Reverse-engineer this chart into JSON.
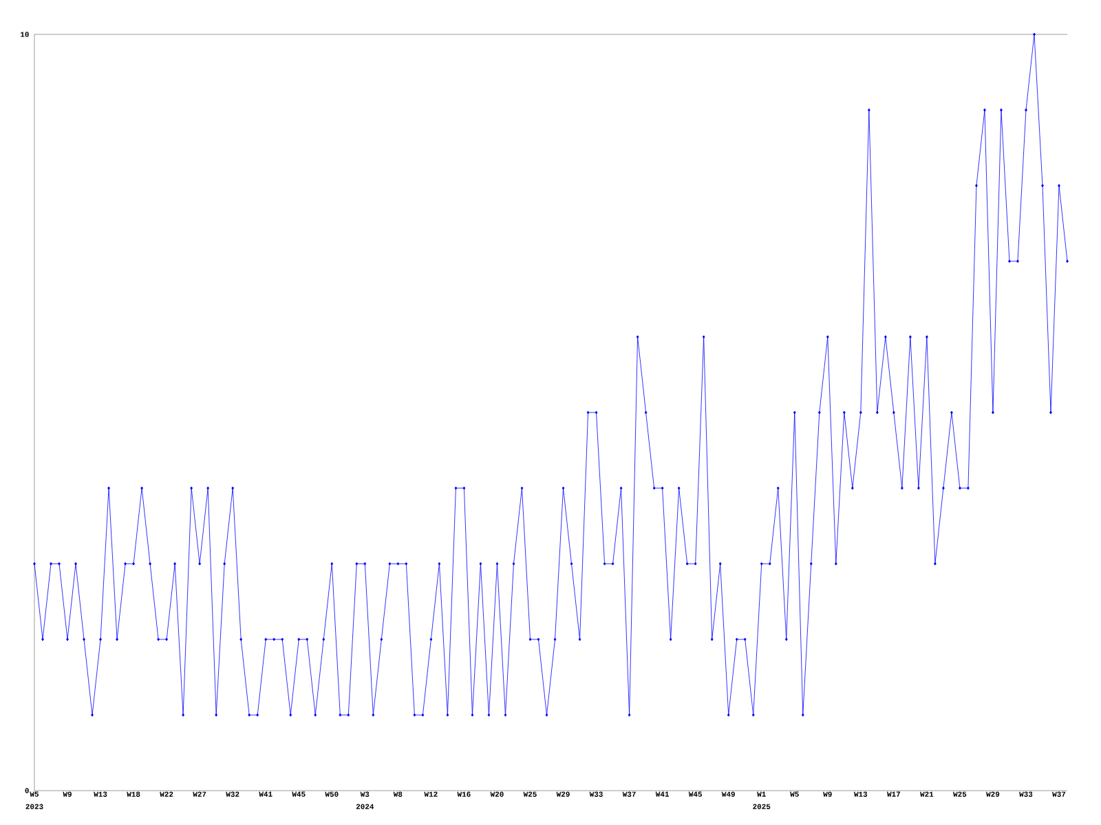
{
  "chart_data": {
    "type": "line",
    "categories": [
      "W5",
      null,
      null,
      null,
      "W9",
      null,
      null,
      null,
      "W13",
      null,
      null,
      null,
      "W18",
      null,
      null,
      null,
      "W22",
      null,
      null,
      null,
      "W27",
      null,
      null,
      null,
      "W32",
      null,
      null,
      null,
      "W41",
      null,
      null,
      null,
      "W45",
      null,
      null,
      null,
      "W50",
      null,
      null,
      null,
      "W3",
      null,
      null,
      null,
      "W8",
      null,
      null,
      null,
      "W12",
      null,
      null,
      null,
      "W16",
      null,
      null,
      null,
      "W20",
      null,
      null,
      null,
      "W25",
      null,
      null,
      null,
      "W29",
      null,
      null,
      null,
      "W33",
      null,
      null,
      null,
      "W37",
      null,
      null,
      null,
      "W41",
      null,
      null,
      null,
      "W45",
      null,
      null,
      null,
      "W49",
      null,
      null,
      null,
      "W1",
      null,
      null,
      null,
      "W5",
      null,
      null,
      null,
      "W9",
      null,
      null,
      null,
      "W13",
      null,
      null,
      null,
      "W17",
      null,
      null,
      null,
      "W21",
      null,
      null,
      null,
      "W25",
      null,
      null,
      null,
      "W29",
      null,
      null,
      null,
      "W33",
      null,
      null,
      null,
      "W37",
      null
    ],
    "values": [
      3,
      2,
      3,
      3,
      2,
      3,
      2,
      1,
      2,
      4,
      2,
      3,
      3,
      4,
      3,
      2,
      2,
      3,
      1,
      4,
      3,
      4,
      1,
      3,
      4,
      2,
      1,
      1,
      2,
      2,
      2,
      1,
      2,
      2,
      1,
      2,
      3,
      1,
      1,
      3,
      3,
      1,
      2,
      3,
      3,
      3,
      1,
      1,
      2,
      3,
      1,
      4,
      4,
      1,
      3,
      1,
      3,
      1,
      3,
      4,
      2,
      2,
      1,
      2,
      4,
      3,
      2,
      5,
      5,
      3,
      3,
      4,
      1,
      6,
      5,
      4,
      4,
      2,
      4,
      3,
      3,
      6,
      2,
      3,
      1,
      2,
      2,
      1,
      3,
      3,
      4,
      2,
      5,
      1,
      3,
      5,
      6,
      3,
      5,
      4,
      5,
      9,
      5,
      6,
      5,
      4,
      6,
      4,
      6,
      3,
      4,
      5,
      4,
      4,
      8,
      9,
      5,
      9,
      7,
      7,
      9,
      10,
      8,
      5,
      8,
      7
    ],
    "color": "#0000ff",
    "marker": "diamond",
    "ylim": [
      0,
      10
    ],
    "yticks": [
      0,
      10
    ],
    "grid": false,
    "annotations": [
      "2023",
      "2024",
      "2025"
    ]
  }
}
